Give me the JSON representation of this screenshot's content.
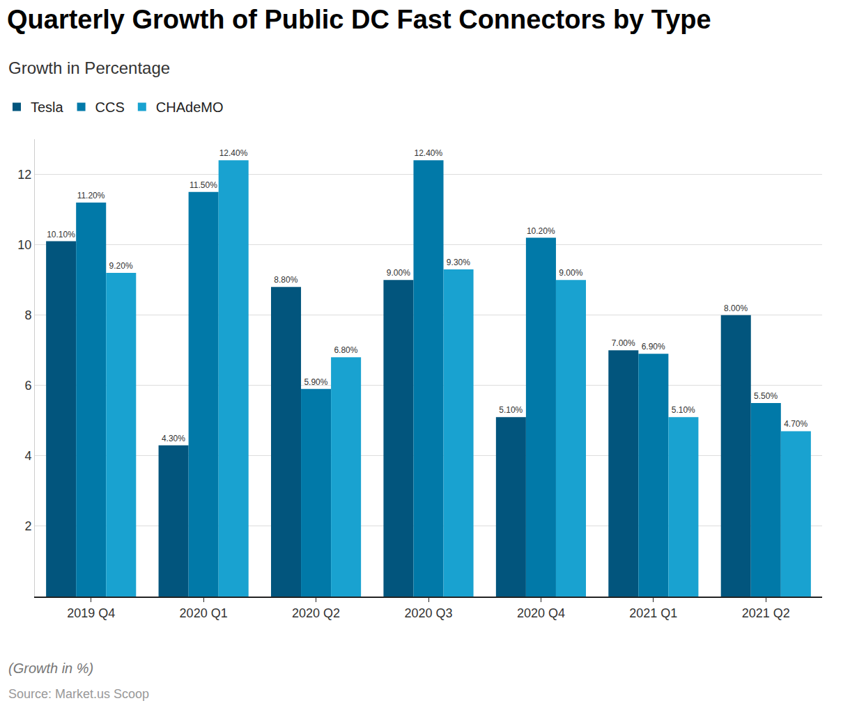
{
  "chart_data": {
    "type": "bar",
    "title": "Quarterly Growth of Public DC Fast Connectors by Type",
    "subtitle": "Growth in Percentage",
    "caption": "(Growth in %)",
    "source": "Source: Market.us Scoop",
    "categories": [
      "2019 Q4",
      "2020 Q1",
      "2020 Q2",
      "2020 Q3",
      "2020 Q4",
      "2021 Q1",
      "2021 Q2"
    ],
    "series": [
      {
        "name": "Tesla",
        "color": "#02557d",
        "values": [
          10.1,
          4.3,
          8.8,
          9.0,
          5.1,
          7.0,
          8.0
        ],
        "value_labels": [
          "10.10%",
          "4.30%",
          "8.80%",
          "9.00%",
          "5.10%",
          "7.00%",
          "8.00%"
        ]
      },
      {
        "name": "CCS",
        "color": "#0179a8",
        "values": [
          11.2,
          11.5,
          5.9,
          12.4,
          10.2,
          6.9,
          5.5
        ],
        "value_labels": [
          "11.20%",
          "11.50%",
          "5.90%",
          "12.40%",
          "10.20%",
          "6.90%",
          "5.50%"
        ]
      },
      {
        "name": "CHAdeMO",
        "color": "#19a2d0",
        "values": [
          9.2,
          12.4,
          6.8,
          9.3,
          9.0,
          5.1,
          4.7
        ],
        "value_labels": [
          "9.20%",
          "12.40%",
          "6.80%",
          "9.30%",
          "9.00%",
          "5.10%",
          "4.70%"
        ]
      }
    ],
    "ylim": [
      0,
      13
    ],
    "yticks": [
      2,
      4,
      6,
      8,
      10,
      12
    ],
    "grid": true,
    "legend": "top-left",
    "data_labels": true
  }
}
